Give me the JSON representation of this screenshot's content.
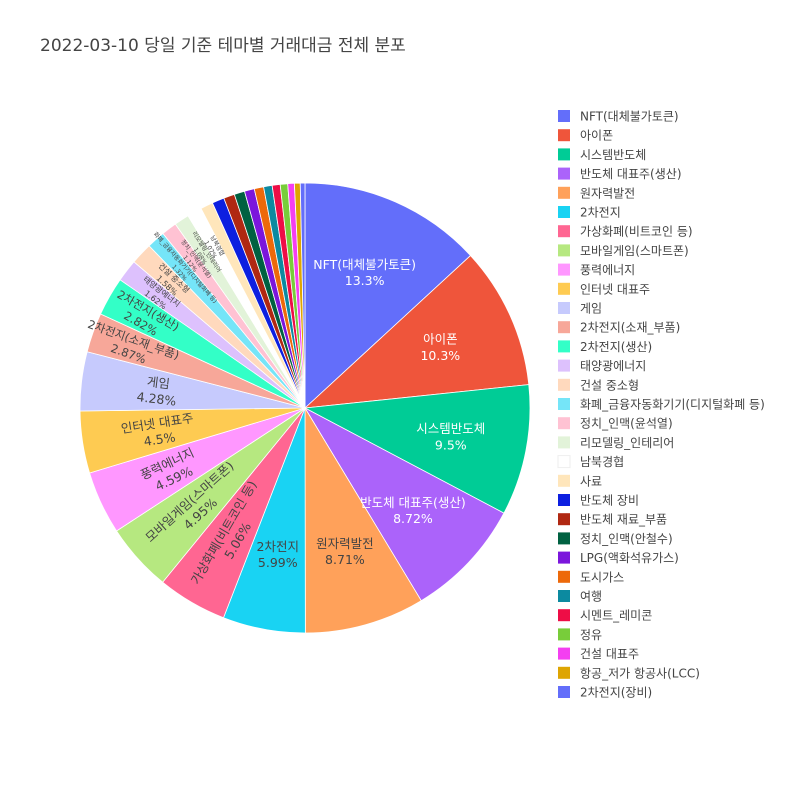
{
  "chart_data": {
    "type": "pie",
    "title": "2022-03-10 당일 기준 테마별 거래대금 전체 분포",
    "legend_position": "right",
    "start_direction": "clockwise from top",
    "labels": [
      "NFT(대체불가토큰)",
      "아이폰",
      "시스템반도체",
      "반도체 대표주(생산)",
      "원자력발전",
      "2차전지",
      "가상화폐(비트코인 등)",
      "모바일게임(스마트폰)",
      "풍력에너지",
      "인터넷 대표주",
      "게임",
      "2차전지(소재_부품)",
      "2차전지(생산)",
      "태양광에너지",
      "건설 중소형",
      "화폐_금융자동화기기(디지털화폐 등)",
      "정치_인맥(윤석열)",
      "리모델링_인테리어",
      "남북경협",
      "사료",
      "반도체 장비",
      "반도체 재료_부품",
      "정치_인맥(안철수)",
      "LPG(액화석유가스)",
      "도시가스",
      "여행",
      "시멘트_레미콘",
      "정유",
      "건설 대표주",
      "항공_저가 항공사(LCC)",
      "2차전지(장비)"
    ],
    "values": [
      13.3,
      10.3,
      9.5,
      8.72,
      8.71,
      5.99,
      5.06,
      4.95,
      4.59,
      4.5,
      4.28,
      2.87,
      2.82,
      1.62,
      1.58,
      1.32,
      1.12,
      1.08,
      1.07,
      0.91,
      0.88,
      0.8,
      0.76,
      0.72,
      0.68,
      0.62,
      0.58,
      0.54,
      0.48,
      0.42,
      0.34
    ],
    "slice_text": [
      "13.3%",
      "10.3%",
      "9.5%",
      "8.72%",
      "8.71%",
      "5.99%",
      "5.06%",
      "4.95%",
      "4.59%",
      "4.5%",
      "4.28%",
      "2.87%",
      "2.82%",
      "1.62%",
      "1.58%",
      "1.32%",
      "1.12%",
      "1.08%",
      "1.07%",
      "",
      "",
      "",
      "",
      "",
      "",
      "",
      "",
      "",
      "",
      "",
      ""
    ],
    "colors": [
      "#636efa",
      "#EF553B",
      "#00cc96",
      "#ab63fa",
      "#FFA15A",
      "#19d3f3",
      "#FF6692",
      "#B6E880",
      "#FF97FF",
      "#FECB52",
      "#c6cafd",
      "#f7a799",
      "#33ffc7",
      "#ddc1fd",
      "#ffd9bd",
      "#75e5f8",
      "#ffc2d3",
      "#e2f3d9",
      "#ffffff",
      "#ffe6bb",
      "#0d1fe0",
      "#b02812",
      "#006141",
      "#7b16dc",
      "#ed690a",
      "#0c8aa0",
      "#ee0d46",
      "#78cd3a",
      "#f43ff1",
      "#dea502",
      "#636efa"
    ]
  }
}
